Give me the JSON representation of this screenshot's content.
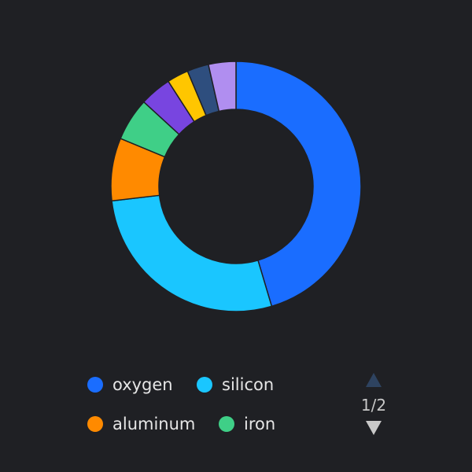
{
  "chart_data": {
    "type": "pie",
    "variant": "donut",
    "slices": [
      {
        "name": "oxygen",
        "value": 46.1,
        "color": "#1a6dff"
      },
      {
        "name": "silicon",
        "value": 28.2,
        "color": "#1ac6ff"
      },
      {
        "name": "aluminum",
        "value": 8.23,
        "color": "#ff8a00"
      },
      {
        "name": "iron",
        "value": 5.63,
        "color": "#3fcf87"
      },
      {
        "name": "",
        "value": 4.15,
        "color": "#7845e0"
      },
      {
        "name": "",
        "value": 2.82,
        "color": "#ffc600"
      },
      {
        "name": "",
        "value": 2.83,
        "color": "#2e4e7e"
      },
      {
        "name": "",
        "value": 3.6,
        "color": "#b08ef0"
      }
    ],
    "legend": {
      "placement": "bottom",
      "visible_items": [
        "oxygen",
        "silicon",
        "aluminum",
        "iron"
      ]
    }
  },
  "pager": {
    "text": "1/2",
    "prev_color": "#2e4360",
    "next_color": "#c8c8c8"
  },
  "colors": {
    "background": "#1f2024",
    "slice_border": "#1f2024"
  }
}
